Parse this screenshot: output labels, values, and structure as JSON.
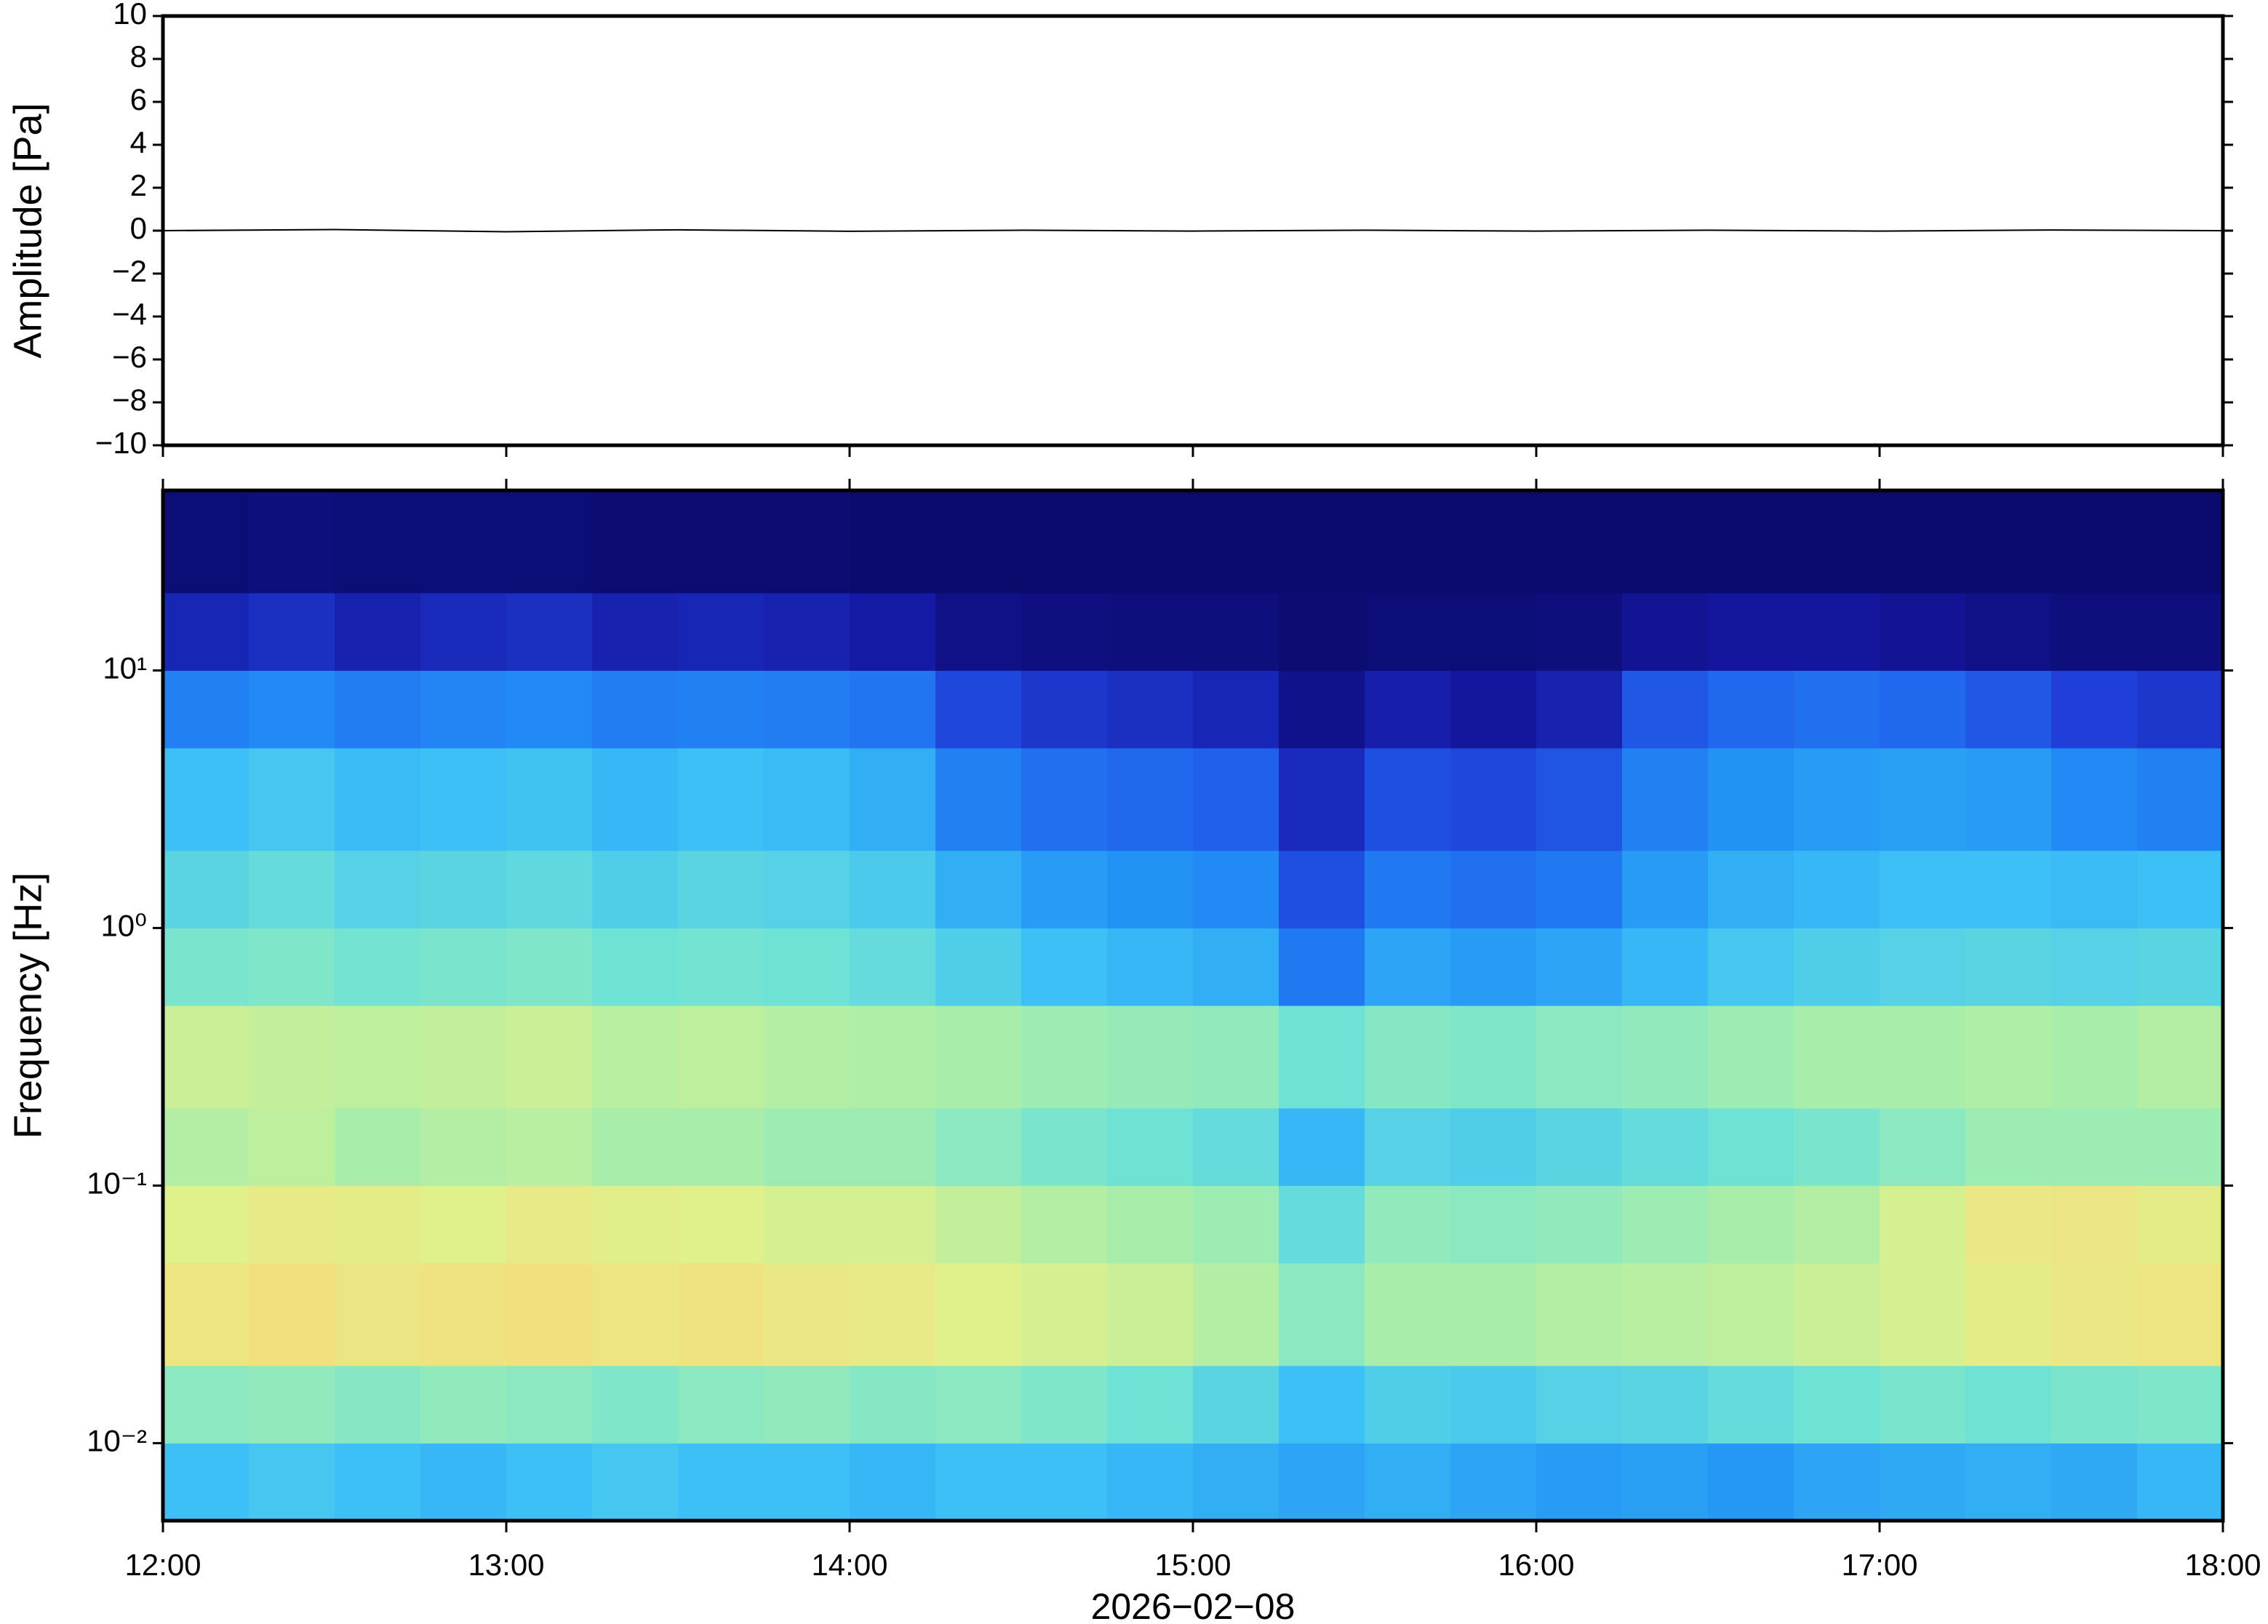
{
  "chart_data": [
    {
      "type": "line",
      "ylabel": "Amplitude [Pa]",
      "x": [
        12,
        12.5,
        13,
        13.5,
        14,
        14.5,
        15,
        15.5,
        16,
        16.5,
        17,
        17.5,
        18
      ],
      "values": [
        0,
        0.05,
        -0.05,
        0.04,
        -0.03,
        0.02,
        -0.02,
        0.02,
        -0.02,
        0.02,
        -0.02,
        0.03,
        0
      ],
      "color": "#000000",
      "xlim": [
        12,
        18
      ],
      "xticks": [
        12,
        13,
        14,
        15,
        16,
        17,
        18
      ],
      "ylim": [
        -10,
        10
      ],
      "yticks": [
        {
          "value": -10,
          "label": "−10"
        },
        {
          "value": -8,
          "label": "−8"
        },
        {
          "value": -6,
          "label": "−6"
        },
        {
          "value": -4,
          "label": "−4"
        },
        {
          "value": -2,
          "label": "−2"
        },
        0,
        2,
        4,
        6,
        8,
        10
      ]
    },
    {
      "type": "heatmap",
      "ylabel": "Frequency [Hz]",
      "xlabel": "2026−02−08",
      "log_y": true,
      "x_bins": [
        12,
        12.25,
        12.5,
        12.75,
        13,
        13.25,
        13.5,
        13.75,
        14,
        14.25,
        14.5,
        14.75,
        15,
        15.25,
        15.5,
        15.75,
        16,
        16.25,
        16.5,
        16.75,
        17,
        17.25,
        17.5,
        17.75,
        18
      ],
      "y_bins": [
        0.005,
        0.01,
        0.02,
        0.05,
        0.1,
        0.2,
        0.5,
        1,
        2,
        5,
        10,
        20,
        50
      ],
      "values": [
        [
          5,
          5.2,
          5,
          4.8,
          5,
          5.2,
          5,
          5,
          4.8,
          5,
          5,
          4.8,
          4.6,
          4.4,
          4.6,
          4.4,
          4.2,
          4.3,
          4.1,
          4.4,
          4.5,
          4.6,
          4.5,
          4.8
        ],
        [
          6.5,
          6.6,
          6.4,
          6.6,
          6.5,
          6.3,
          6.5,
          6.6,
          6.4,
          6.5,
          6.3,
          6.0,
          5.6,
          5.0,
          5.4,
          5.3,
          5.5,
          5.6,
          5.8,
          6.0,
          6.2,
          6.0,
          6.2,
          6.3
        ],
        [
          8.6,
          8.8,
          8.5,
          8.7,
          8.8,
          8.6,
          8.7,
          8.4,
          8.3,
          8.0,
          7.8,
          7.6,
          7.2,
          6.5,
          7.0,
          7.0,
          7.2,
          7.3,
          7.4,
          7.6,
          7.8,
          8.2,
          8.4,
          8.6
        ],
        [
          8.0,
          8.3,
          8.2,
          8.0,
          8.3,
          8.1,
          8.0,
          7.8,
          7.8,
          7.5,
          7.2,
          7.0,
          6.8,
          5.8,
          6.6,
          6.5,
          6.6,
          6.8,
          7.0,
          7.2,
          7.8,
          8.4,
          8.5,
          8.2
        ],
        [
          7.2,
          7.4,
          7.0,
          7.2,
          7.3,
          7.0,
          7.0,
          6.8,
          6.8,
          6.5,
          6.2,
          6.0,
          5.8,
          4.8,
          5.5,
          5.4,
          5.6,
          5.8,
          6.0,
          6.2,
          6.5,
          6.8,
          6.8,
          6.8
        ],
        [
          7.6,
          7.5,
          7.4,
          7.5,
          7.6,
          7.3,
          7.4,
          7.2,
          7.1,
          7.0,
          6.8,
          6.7,
          6.6,
          6.0,
          6.4,
          6.3,
          6.5,
          6.6,
          6.8,
          7.0,
          7.0,
          7.1,
          7.0,
          7.2
        ],
        [
          6.2,
          6.3,
          6.1,
          6.2,
          6.3,
          6.0,
          6.1,
          6.0,
          5.8,
          5.4,
          5.0,
          4.8,
          4.6,
          3.4,
          4.4,
          4.2,
          4.4,
          4.8,
          5.2,
          5.4,
          5.5,
          5.6,
          5.5,
          5.6
        ],
        [
          5.6,
          5.8,
          5.5,
          5.6,
          5.7,
          5.4,
          5.6,
          5.5,
          5.3,
          4.6,
          4.2,
          4.0,
          3.8,
          2.4,
          3.4,
          3.2,
          3.4,
          4.2,
          4.6,
          4.8,
          5.0,
          5.0,
          4.9,
          5.0
        ],
        [
          5.0,
          5.2,
          4.9,
          5.0,
          5.1,
          4.8,
          5.0,
          4.9,
          4.6,
          3.6,
          3.2,
          3.0,
          2.8,
          1.5,
          2.4,
          2.2,
          2.5,
          3.6,
          4.0,
          4.2,
          4.3,
          4.2,
          3.8,
          3.6
        ],
        [
          3.6,
          3.8,
          3.5,
          3.7,
          3.8,
          3.5,
          3.6,
          3.5,
          3.3,
          2.2,
          1.8,
          1.6,
          1.4,
          0.6,
          1.2,
          1.0,
          1.3,
          2.6,
          3.0,
          3.2,
          3.0,
          2.6,
          2.0,
          1.8
        ],
        [
          1.4,
          1.6,
          1.3,
          1.5,
          1.6,
          1.3,
          1.4,
          1.3,
          1.1,
          0.5,
          0.4,
          0.3,
          0.3,
          0.1,
          0.2,
          0.2,
          0.3,
          0.8,
          1.0,
          1.0,
          0.8,
          0.5,
          0.3,
          0.3
        ],
        [
          0.2,
          0.3,
          0.2,
          0.2,
          0.2,
          0.1,
          0.1,
          0.1,
          0,
          0,
          0,
          0,
          0,
          0,
          0,
          0,
          0,
          0,
          0,
          0,
          0,
          0,
          0,
          0
        ]
      ],
      "colormap": [
        {
          "value": 0,
          "color": "#0b0b6e"
        },
        {
          "value": 1,
          "color": "#14169e"
        },
        {
          "value": 2,
          "color": "#1f3fd8"
        },
        {
          "value": 3,
          "color": "#2068ee"
        },
        {
          "value": 4,
          "color": "#2392f5"
        },
        {
          "value": 5,
          "color": "#3cc0f5"
        },
        {
          "value": 6,
          "color": "#6fe2d6"
        },
        {
          "value": 7,
          "color": "#a8eeaa"
        },
        {
          "value": 8,
          "color": "#e0f08a"
        },
        {
          "value": 9,
          "color": "#f6dc7c"
        },
        {
          "value": 10,
          "color": "#f8c070"
        }
      ],
      "xlim": [
        12,
        18
      ],
      "xticks": [
        {
          "value": 12,
          "label": "12:00"
        },
        {
          "value": 13,
          "label": "13:00"
        },
        {
          "value": 14,
          "label": "14:00"
        },
        {
          "value": 15,
          "label": "15:00"
        },
        {
          "value": 16,
          "label": "16:00"
        },
        {
          "value": 17,
          "label": "17:00"
        },
        {
          "value": 18,
          "label": "18:00"
        }
      ],
      "ylim": [
        0.005,
        50
      ],
      "yticks": [
        {
          "value": 0.01,
          "label": "10⁻²"
        },
        {
          "value": 0.1,
          "label": "10⁻¹"
        },
        {
          "value": 1,
          "label": "10⁰"
        },
        {
          "value": 10,
          "label": "10¹"
        }
      ]
    }
  ]
}
